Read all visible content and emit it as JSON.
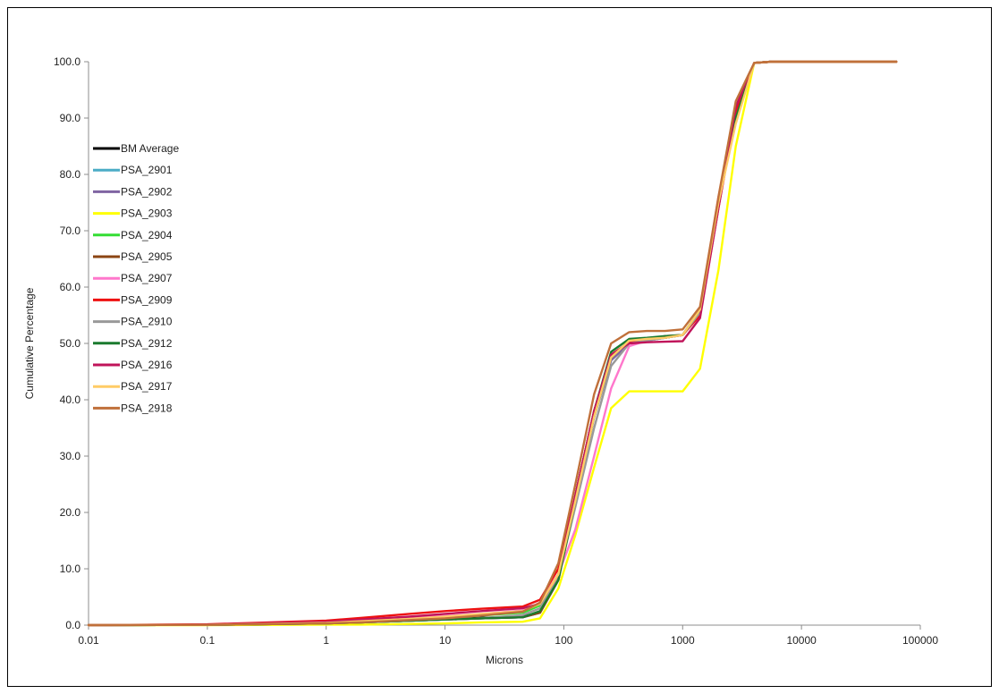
{
  "chart_data": {
    "type": "line",
    "title": "",
    "xlabel": "Microns",
    "ylabel": "Cumulative Percentage",
    "x_scale": "log",
    "xlim": [
      0.01,
      100000
    ],
    "ylim": [
      0,
      100
    ],
    "x_ticks": [
      "0.01",
      "0.1",
      "1",
      "10",
      "100",
      "1000",
      "10000",
      "100000"
    ],
    "y_ticks": [
      "0.0",
      "10.0",
      "20.0",
      "30.0",
      "40.0",
      "50.0",
      "60.0",
      "70.0",
      "80.0",
      "90.0",
      "100.0"
    ],
    "grid": false,
    "legend_position": "left-upper",
    "x": [
      0.01,
      0.1,
      1,
      2,
      5,
      10,
      20,
      45,
      63,
      90,
      125,
      180,
      250,
      355,
      500,
      710,
      1000,
      1400,
      2000,
      2800,
      4000,
      5600,
      63000
    ],
    "series": [
      {
        "name": "BM Average",
        "color": "#000000",
        "values": [
          0,
          0.05,
          0.4,
          0.6,
          0.9,
          1.1,
          1.3,
          1.5,
          2.3,
          8.5,
          23,
          38,
          47.5,
          50.3,
          50.7,
          51,
          51.5,
          55.5,
          75,
          90,
          99.8,
          100,
          100
        ]
      },
      {
        "name": "PSA_2901",
        "color": "#4bacc6",
        "values": [
          0,
          0.05,
          0.3,
          0.5,
          0.8,
          1,
          1.2,
          1.4,
          2.2,
          8,
          22,
          37,
          47,
          50,
          50.5,
          51,
          51.5,
          55.5,
          75,
          90,
          99.8,
          100,
          100
        ]
      },
      {
        "name": "PSA_2902",
        "color": "#8064a2",
        "values": [
          0,
          0.05,
          0.3,
          0.5,
          0.8,
          1,
          1.2,
          1.4,
          2.2,
          8,
          22,
          37,
          47,
          50,
          50.5,
          51,
          51.5,
          55.5,
          75,
          90,
          99.8,
          100,
          100
        ]
      },
      {
        "name": "PSA_2903",
        "color": "#ffff00",
        "values": [
          0,
          0,
          0.1,
          0.1,
          0.2,
          0.3,
          0.5,
          0.6,
          1.2,
          6.5,
          16,
          28,
          38.5,
          41.5,
          41.5,
          41.5,
          41.5,
          45.5,
          63,
          85,
          99.8,
          100,
          100
        ]
      },
      {
        "name": "PSA_2904",
        "color": "#33dd33",
        "values": [
          0,
          0.05,
          0.3,
          0.5,
          0.9,
          1.2,
          1.7,
          2.2,
          3.5,
          9,
          22,
          37,
          47.5,
          50.5,
          50.8,
          51,
          51.5,
          56,
          75,
          90,
          99.8,
          100,
          100
        ]
      },
      {
        "name": "PSA_2905",
        "color": "#8b4513",
        "values": [
          0,
          0.05,
          0.3,
          0.5,
          0.8,
          1,
          1.2,
          1.4,
          2.2,
          8,
          22,
          37,
          47.5,
          50.5,
          50.8,
          51,
          51.5,
          55.5,
          75,
          91,
          99.8,
          100,
          100
        ]
      },
      {
        "name": "PSA_2907",
        "color": "#ff77cc",
        "values": [
          0,
          0.1,
          0.5,
          0.8,
          1.3,
          1.6,
          2,
          2.6,
          4,
          9,
          17,
          30,
          42,
          49.5,
          50.5,
          51,
          51.5,
          56,
          76,
          90,
          99.8,
          100,
          100
        ]
      },
      {
        "name": "PSA_2909",
        "color": "#ee1111",
        "values": [
          0,
          0.15,
          0.8,
          1.3,
          2,
          2.5,
          2.9,
          3.3,
          4.5,
          10,
          23,
          38,
          48,
          50.2,
          50.6,
          51.3,
          51.5,
          55,
          74,
          91,
          99.8,
          100,
          100
        ]
      },
      {
        "name": "PSA_2910",
        "color": "#999999",
        "values": [
          0,
          0.05,
          0.3,
          0.5,
          0.8,
          1,
          1.2,
          1.8,
          3,
          8.5,
          21,
          35,
          46,
          50,
          50.5,
          51,
          51.5,
          55.5,
          75,
          90,
          99.8,
          100,
          100
        ]
      },
      {
        "name": "PSA_2912",
        "color": "#1a7a2e",
        "values": [
          0,
          0.05,
          0.3,
          0.5,
          0.8,
          1,
          1.2,
          1.4,
          2.5,
          8,
          22,
          38,
          48.5,
          50.8,
          51,
          51.3,
          51.5,
          56,
          75,
          90,
          99.8,
          100,
          100
        ]
      },
      {
        "name": "PSA_2916",
        "color": "#c0145a",
        "values": [
          0,
          0.1,
          0.6,
          1,
          1.5,
          2,
          2.5,
          3,
          3.8,
          9,
          23,
          38,
          48,
          50,
          50.2,
          50.3,
          50.4,
          54.5,
          74,
          92,
          99.8,
          100,
          100
        ]
      },
      {
        "name": "PSA_2917",
        "color": "#ffcc66",
        "values": [
          0,
          0.05,
          0.4,
          0.7,
          1.1,
          1.5,
          2,
          2.5,
          3.8,
          9,
          22,
          37,
          47.5,
          50.5,
          50.8,
          51,
          51.5,
          56,
          75,
          89,
          99.8,
          100,
          100
        ]
      },
      {
        "name": "PSA_2918",
        "color": "#c0703a",
        "values": [
          0,
          0.05,
          0.3,
          0.5,
          0.9,
          1.2,
          1.7,
          2.4,
          4,
          11,
          25,
          41,
          50,
          52,
          52.2,
          52.2,
          52.5,
          56.5,
          76,
          93,
          99.8,
          100,
          100
        ]
      }
    ]
  }
}
